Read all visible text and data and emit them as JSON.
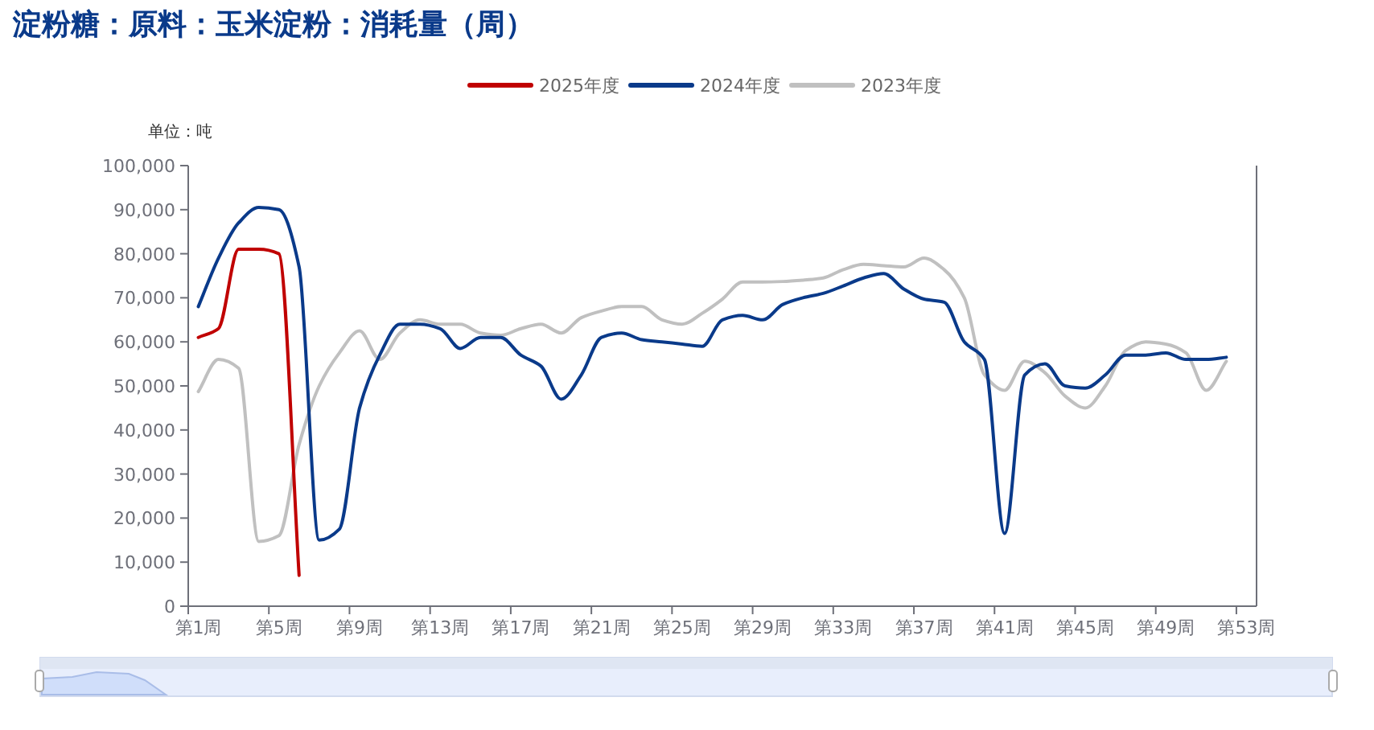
{
  "chart_data": {
    "type": "line",
    "title": "淀粉糖：原料：玉米淀粉：消耗量（周）",
    "annotations": [
      "单位：吨"
    ],
    "categories": [
      "第1周",
      null,
      null,
      null,
      "第5周",
      null,
      null,
      null,
      "第9周",
      null,
      null,
      null,
      "第13周",
      null,
      null,
      null,
      "第17周",
      null,
      null,
      null,
      "第21周",
      null,
      null,
      null,
      "第25周",
      null,
      null,
      null,
      "第29周",
      null,
      null,
      null,
      "第33周",
      null,
      null,
      null,
      "第37周",
      null,
      null,
      null,
      "第41周",
      null,
      null,
      null,
      "第45周",
      null,
      null,
      null,
      "第49周",
      null,
      null,
      null,
      "第53周"
    ],
    "series": [
      {
        "name": "2025年度",
        "color": "#c00000",
        "values": [
          61000,
          63000,
          81000,
          81000,
          80000,
          7000,
          null,
          null,
          null,
          null,
          null,
          null,
          null,
          null,
          null,
          null,
          null,
          null,
          null,
          null,
          null,
          null,
          null,
          null,
          null,
          null,
          null,
          null,
          null,
          null,
          null,
          null,
          null,
          null,
          null,
          null,
          null,
          null,
          null,
          null,
          null,
          null,
          null,
          null,
          null,
          null,
          null,
          null,
          null,
          null,
          null,
          null,
          null
        ]
      },
      {
        "name": "2024年度",
        "color": "#0a3a8a",
        "values": [
          68000,
          79000,
          87000,
          90500,
          90000,
          77000,
          15000,
          17500,
          45000,
          57000,
          64000,
          64000,
          63000,
          58500,
          61000,
          61000,
          57000,
          54500,
          47000,
          52500,
          61000,
          62000,
          60500,
          60000,
          59500,
          59000,
          65000,
          66000,
          65000,
          68500,
          70000,
          71000,
          72700,
          74500,
          75500,
          72000,
          69700,
          69000,
          60000,
          56000,
          16500,
          52500,
          55000,
          50000,
          49500,
          52500,
          57000,
          57000,
          57500,
          56000,
          56000,
          56500,
          null
        ]
      },
      {
        "name": "2023年度",
        "color": "#c0c0c0",
        "values": [
          48700,
          56000,
          54000,
          14700,
          16000,
          36700,
          50000,
          57500,
          62500,
          56000,
          62000,
          65000,
          64000,
          64000,
          62000,
          61500,
          63000,
          64000,
          62000,
          65500,
          67000,
          68000,
          68000,
          65000,
          64000,
          66500,
          69700,
          73600,
          73600,
          73700,
          74000,
          74500,
          76400,
          77600,
          77300,
          77000,
          79000,
          76400,
          70000,
          52500,
          49000,
          55600,
          53000,
          47700,
          45000,
          50000,
          58000,
          60000,
          59500,
          57500,
          49000,
          55600,
          null
        ]
      }
    ],
    "ylim": [
      0,
      100000
    ],
    "yticks": [
      0,
      {
        "value": 10000,
        "label": "10,000"
      },
      {
        "value": 20000,
        "label": "20,000"
      },
      {
        "value": 30000,
        "label": "30,000"
      },
      {
        "value": 40000,
        "label": "40,000"
      },
      {
        "value": 50000,
        "label": "50,000"
      },
      {
        "value": 60000,
        "label": "60,000"
      },
      {
        "value": 70000,
        "label": "70,000"
      },
      {
        "value": 80000,
        "label": "80,000"
      },
      {
        "value": 90000,
        "label": "90,000"
      },
      {
        "value": 100000,
        "label": "100,000"
      }
    ],
    "legend": "top",
    "grid": false,
    "marker": "none",
    "line_style": "solid"
  }
}
